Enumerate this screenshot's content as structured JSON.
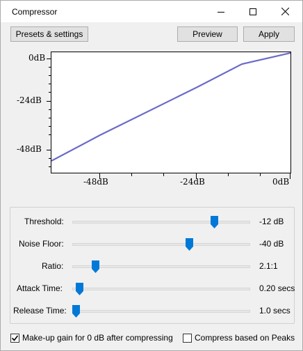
{
  "window": {
    "title": "Compressor"
  },
  "toolbar": {
    "presets_label": "Presets & settings",
    "preview_label": "Preview",
    "apply_label": "Apply"
  },
  "graph": {
    "y_ticks": [
      "0dB",
      "-24dB",
      "-48dB"
    ],
    "x_ticks": [
      "-48dB",
      "-24dB",
      "0dB"
    ],
    "line_color": "#6a6ac9"
  },
  "controls": {
    "threshold": {
      "label": "Threshold:",
      "value": "-12 dB",
      "level": 0.8
    },
    "noise_floor": {
      "label": "Noise Floor:",
      "value": "-40 dB",
      "level": 0.66
    },
    "ratio": {
      "label": "Ratio:",
      "value": "2.1:1",
      "level": 0.13
    },
    "attack": {
      "label": "Attack Time:",
      "value": "0.20 secs",
      "level": 0.04
    },
    "release": {
      "label": "Release Time:",
      "value": "1.0 secs",
      "level": 0.02
    }
  },
  "options": {
    "makeup_label": "Make-up gain for 0 dB after compressing",
    "makeup_checked": true,
    "peaks_label": "Compress based on Peaks",
    "peaks_checked": false
  },
  "colors": {
    "accent": "#0078d7"
  }
}
